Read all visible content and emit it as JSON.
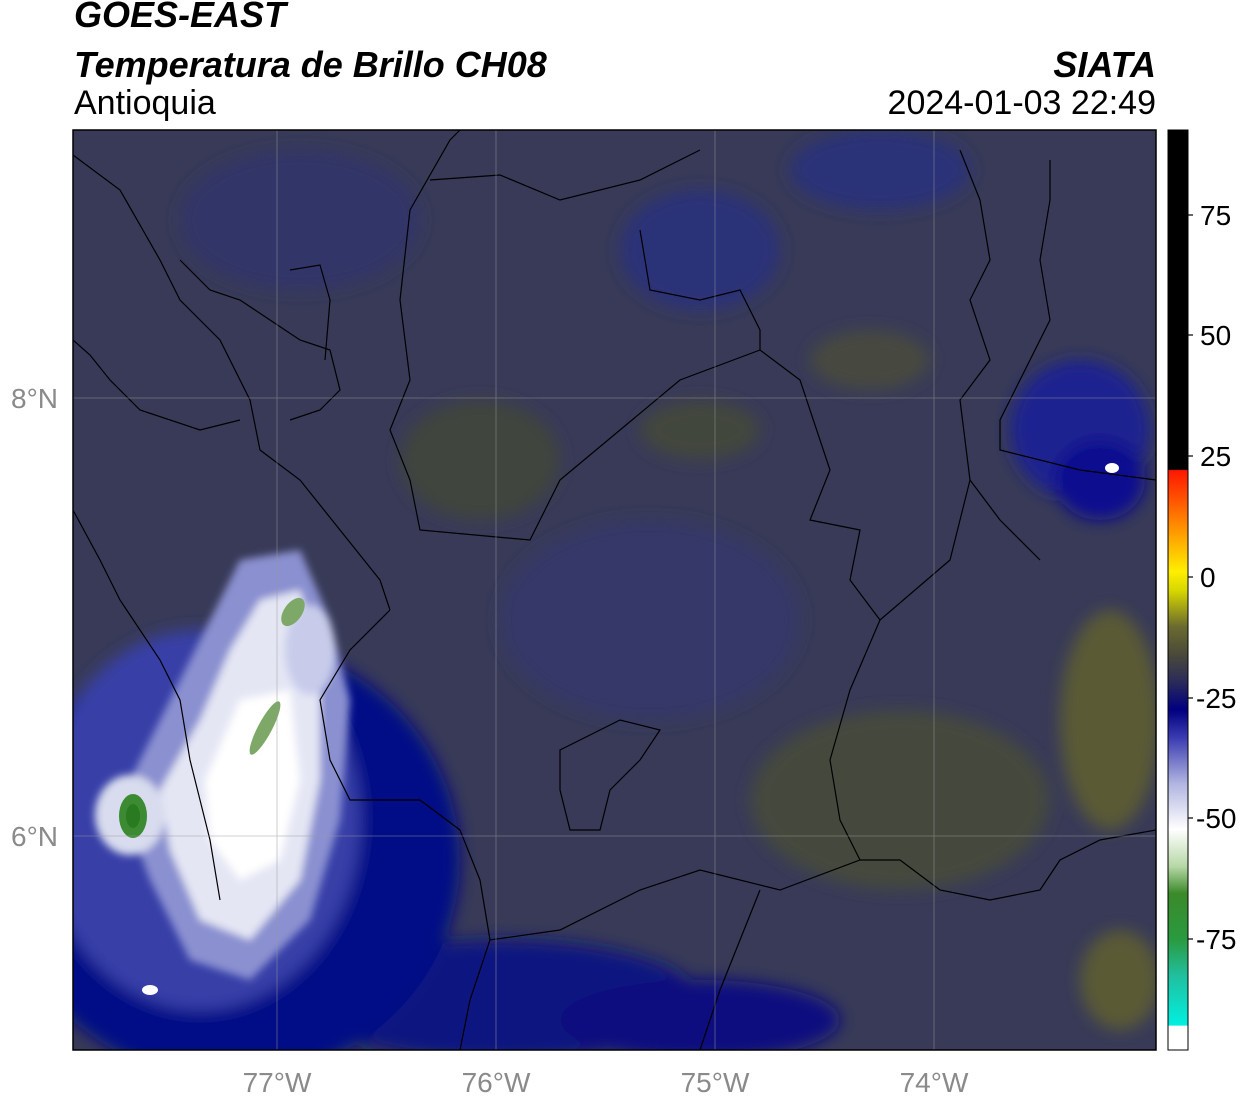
{
  "header": {
    "satellite": "GOES-EAST",
    "product": "Temperatura de Brillo CH08",
    "region": "Antioquia",
    "agency": "SIATA",
    "datetime": "2024-01-03 22:49"
  },
  "map": {
    "lon_labels": [
      "77°W",
      "76°W",
      "75°W",
      "74°W"
    ],
    "lat_labels": [
      "8°N",
      "6°N"
    ],
    "grid": true
  },
  "colorbar": {
    "ticks": [
      "75",
      "50",
      "25",
      "0",
      "-25",
      "-50",
      "-75"
    ],
    "colors": {
      "warm": "#000000",
      "red": "#ff2200",
      "orange": "#ff9900",
      "yellow": "#ffee00",
      "olive": "#4a4a30",
      "navy": "#000080",
      "white": "#ffffff",
      "green": "#2e8b2e",
      "cyan": "#00e5d8"
    }
  }
}
